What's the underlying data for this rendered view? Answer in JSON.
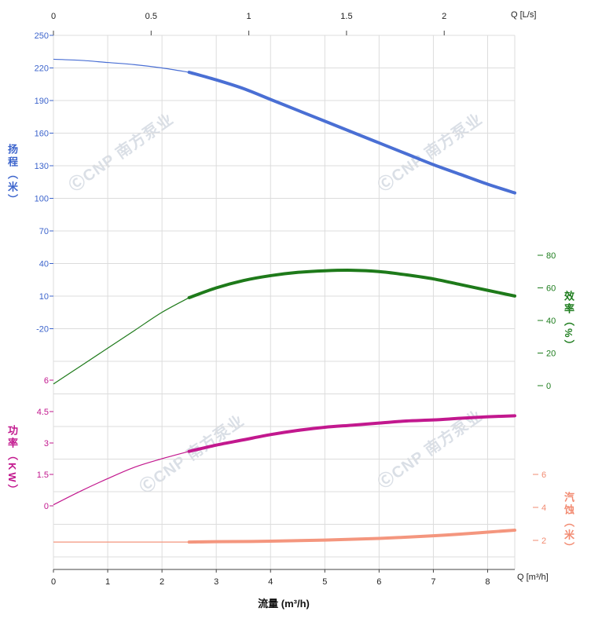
{
  "chart_data": {
    "type": "line",
    "title": "",
    "watermark": "ⒸCNP 南方泵业",
    "x_axis_top": {
      "unit_label": "Q [L/s]",
      "tick_values": [
        0,
        0.5,
        1,
        1.5,
        2
      ],
      "lps_to_m3h": 3.6
    },
    "x_axis_bottom": {
      "unit_label": "Q [m³/h]",
      "title": "流量 (m³/h)",
      "ticks": [
        0,
        1,
        2,
        3,
        4,
        5,
        6,
        7,
        8
      ],
      "range": [
        0,
        8.5
      ]
    },
    "y_axes": {
      "head": {
        "title": "扬程（米）",
        "color": "#3c64cc",
        "side": "left",
        "ticks": [
          250,
          220,
          190,
          160,
          130,
          100,
          70,
          40,
          10,
          -20
        ],
        "range": [
          -20,
          250
        ]
      },
      "efficiency": {
        "title": "效率（%）",
        "color": "#1e7d1e",
        "side": "right",
        "ticks": [
          80,
          60,
          40,
          20,
          0
        ],
        "range": [
          0,
          80
        ]
      },
      "power": {
        "title": "功率（KW）",
        "color": "#c2188e",
        "side": "left",
        "ticks": [
          6,
          4.5,
          3,
          1.5,
          0
        ],
        "range": [
          0,
          6
        ]
      },
      "npsh": {
        "title": "汽蚀（米）",
        "color": "#f28b72",
        "side": "right",
        "ticks": [
          6,
          4,
          2
        ],
        "range": [
          2,
          6
        ]
      }
    },
    "series": [
      {
        "name": "head-curve",
        "axis": "head",
        "color": "#4a6fd4",
        "bold_from": 2.5,
        "points": [
          [
            0,
            228
          ],
          [
            0.5,
            227
          ],
          [
            1,
            225
          ],
          [
            1.5,
            223
          ],
          [
            2,
            220
          ],
          [
            2.5,
            216
          ],
          [
            3,
            209
          ],
          [
            3.5,
            201
          ],
          [
            4,
            191
          ],
          [
            4.5,
            181
          ],
          [
            5,
            171
          ],
          [
            5.5,
            161
          ],
          [
            6,
            151
          ],
          [
            6.5,
            141
          ],
          [
            7,
            131
          ],
          [
            7.5,
            122
          ],
          [
            8,
            113
          ],
          [
            8.5,
            105
          ]
        ]
      },
      {
        "name": "efficiency-curve",
        "axis": "efficiency",
        "color": "#1e7a1a",
        "bold_from": 2.5,
        "points": [
          [
            0,
            1
          ],
          [
            0.5,
            12
          ],
          [
            1,
            23
          ],
          [
            1.5,
            34
          ],
          [
            2,
            45
          ],
          [
            2.5,
            54
          ],
          [
            3,
            60
          ],
          [
            3.5,
            64.5
          ],
          [
            4,
            67.5
          ],
          [
            4.5,
            69.5
          ],
          [
            5,
            70.5
          ],
          [
            5.5,
            70.8
          ],
          [
            6,
            70
          ],
          [
            6.5,
            68
          ],
          [
            7,
            65.5
          ],
          [
            7.5,
            62
          ],
          [
            8,
            58.5
          ],
          [
            8.5,
            55
          ]
        ]
      },
      {
        "name": "power-curve",
        "axis": "power",
        "color": "#c2188e",
        "bold_from": 2.5,
        "points": [
          [
            0,
            0.05
          ],
          [
            0.5,
            0.7
          ],
          [
            1,
            1.3
          ],
          [
            1.5,
            1.85
          ],
          [
            2,
            2.25
          ],
          [
            2.5,
            2.6
          ],
          [
            3,
            2.9
          ],
          [
            3.5,
            3.15
          ],
          [
            4,
            3.4
          ],
          [
            4.5,
            3.6
          ],
          [
            5,
            3.75
          ],
          [
            5.5,
            3.85
          ],
          [
            6,
            3.95
          ],
          [
            6.5,
            4.05
          ],
          [
            7,
            4.1
          ],
          [
            7.5,
            4.18
          ],
          [
            8,
            4.25
          ],
          [
            8.5,
            4.3
          ]
        ]
      },
      {
        "name": "npsh-curve",
        "axis": "npsh",
        "color": "#f4967e",
        "bold_from": 2.5,
        "points": [
          [
            0,
            1.9
          ],
          [
            1,
            1.9
          ],
          [
            2,
            1.9
          ],
          [
            2.5,
            1.9
          ],
          [
            3,
            1.92
          ],
          [
            4,
            1.95
          ],
          [
            5,
            2.02
          ],
          [
            6,
            2.12
          ],
          [
            7,
            2.28
          ],
          [
            7.5,
            2.38
          ],
          [
            8,
            2.5
          ],
          [
            8.5,
            2.62
          ]
        ]
      }
    ]
  }
}
